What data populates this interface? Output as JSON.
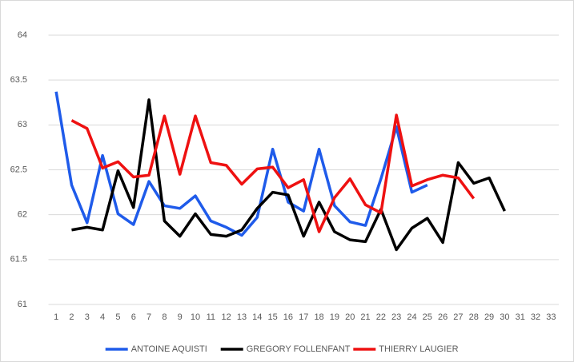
{
  "chart_data": {
    "type": "line",
    "categories": [
      "1",
      "2",
      "3",
      "4",
      "5",
      "6",
      "7",
      "8",
      "9",
      "10",
      "11",
      "12",
      "13",
      "14",
      "15",
      "16",
      "17",
      "18",
      "19",
      "20",
      "21",
      "22",
      "23",
      "24",
      "25",
      "26",
      "27",
      "28",
      "29",
      "30",
      "31",
      "32",
      "33"
    ],
    "series": [
      {
        "name": "ANTOINE AQUISTI",
        "color": "#1f5bea",
        "values": [
          63.37,
          62.33,
          61.91,
          62.66,
          62.01,
          61.89,
          62.37,
          62.1,
          62.07,
          62.21,
          61.93,
          61.86,
          61.77,
          61.97,
          62.73,
          62.14,
          62.04,
          62.73,
          62.1,
          61.92,
          61.88,
          62.4,
          62.98,
          62.25,
          62.33,
          null,
          null,
          null,
          null,
          null,
          null,
          null,
          null
        ]
      },
      {
        "name": "GREGORY FOLLENFANT",
        "color": "#000000",
        "values": [
          null,
          61.83,
          61.86,
          61.83,
          62.49,
          62.08,
          63.28,
          61.93,
          61.76,
          62.01,
          61.78,
          61.76,
          61.83,
          62.07,
          62.25,
          62.22,
          61.76,
          62.14,
          61.81,
          61.72,
          61.7,
          62.06,
          61.61,
          61.85,
          61.96,
          61.69,
          62.58,
          62.35,
          62.41,
          62.04,
          null,
          null,
          null
        ]
      },
      {
        "name": "THIERRY LAUGIER",
        "color": "#ee1111",
        "values": [
          null,
          63.05,
          62.96,
          62.52,
          62.59,
          62.42,
          62.44,
          63.1,
          62.45,
          63.1,
          62.58,
          62.55,
          62.34,
          62.51,
          62.53,
          62.3,
          62.39,
          61.81,
          62.19,
          62.4,
          62.11,
          62.02,
          63.11,
          62.32,
          62.39,
          62.44,
          62.41,
          62.18,
          null,
          null,
          null,
          null,
          null
        ]
      }
    ],
    "ylim": [
      61,
      64
    ],
    "yticks": [
      61,
      61.5,
      62,
      62.5,
      63,
      63.5,
      64
    ],
    "grid": true,
    "legend": "bottom"
  }
}
